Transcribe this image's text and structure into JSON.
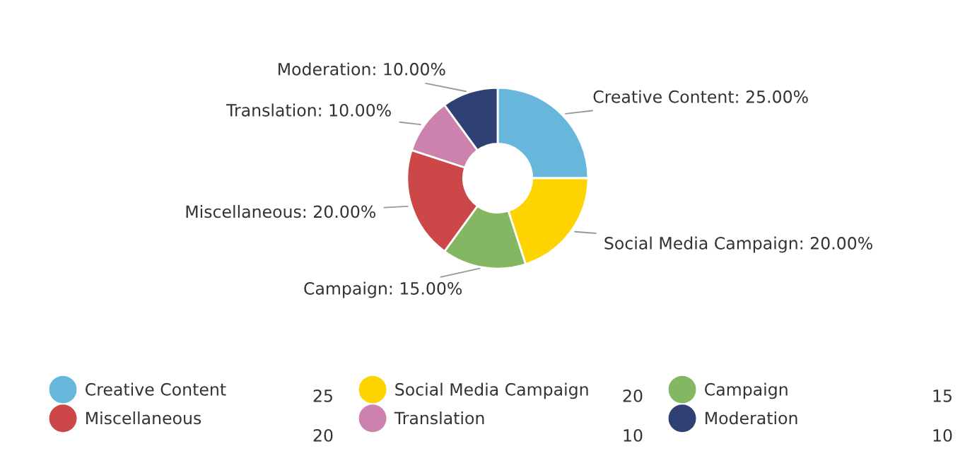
{
  "chart_data": {
    "type": "donut",
    "categories": [
      "Creative Content",
      "Social Media Campaign",
      "Campaign",
      "Miscellaneous",
      "Translation",
      "Moderation"
    ],
    "values": [
      25,
      20,
      15,
      20,
      10,
      10
    ],
    "colors": [
      "#67b7dc",
      "#fdd400",
      "#84b761",
      "#cc4748",
      "#cd82ad",
      "#2f4074"
    ],
    "value_labels": [
      "Creative Content: 25.00%",
      "Social Media Campaign: 20.00%",
      "Campaign: 15.00%",
      "Miscellaneous: 20.00%",
      "Translation: 10.00%",
      "Moderation: 10.00%"
    ],
    "annotations": [
      "25",
      "20",
      "15",
      "20",
      "10",
      "10"
    ],
    "legend": "bottom"
  }
}
